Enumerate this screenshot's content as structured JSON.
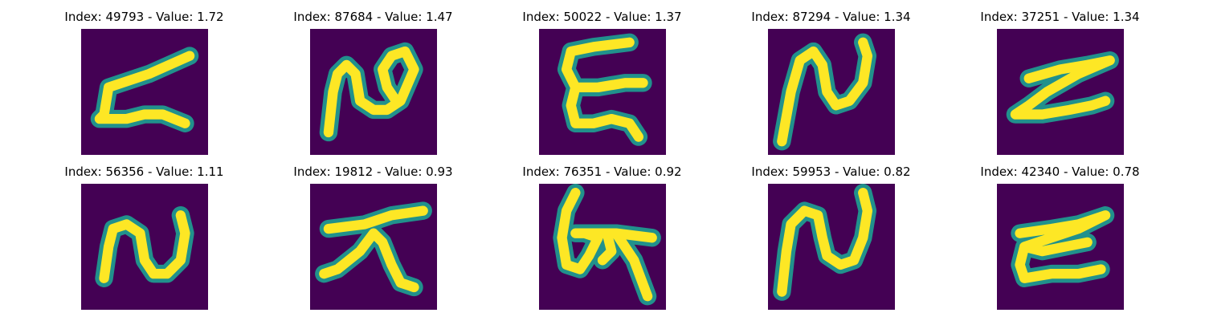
{
  "figure": {
    "background": "#ffffff",
    "colormap": {
      "name": "viridis",
      "low": "#440154",
      "mid": "#21918c",
      "high": "#fde725"
    }
  },
  "images": [
    {
      "title": "Index: 49793 - Value: 1.72",
      "glyph": "script-z-angled"
    },
    {
      "title": "Index: 87684 - Value: 1.47",
      "glyph": "script-n-looped"
    },
    {
      "title": "Index: 50022 - Value: 1.37",
      "glyph": "script-epsilon"
    },
    {
      "title": "Index: 87294 - Value: 1.34",
      "glyph": "script-n"
    },
    {
      "title": "Index: 37251 - Value: 1.34",
      "glyph": "script-z-flat"
    },
    {
      "title": "Index: 56356 - Value: 1.11",
      "glyph": "script-n-small"
    },
    {
      "title": "Index: 19812 - Value: 0.93",
      "glyph": "script-x-cross"
    },
    {
      "title": "Index: 76351 - Value: 0.92",
      "glyph": "script-six-cross"
    },
    {
      "title": "Index: 59953 - Value: 0.82",
      "glyph": "script-n-tall"
    },
    {
      "title": "Index: 42340 - Value: 0.78",
      "glyph": "script-z-double"
    }
  ]
}
